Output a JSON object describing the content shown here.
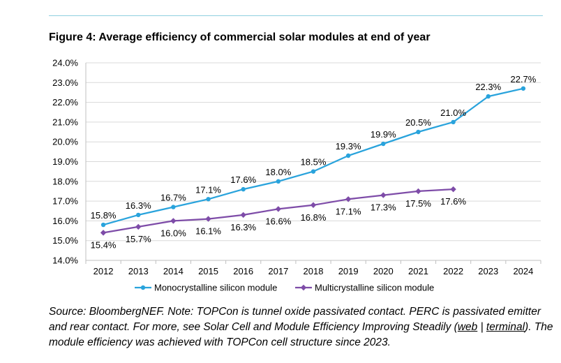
{
  "figure": {
    "title": "Figure 4:  Average efficiency of commercial solar modules at end of year"
  },
  "chart_data": {
    "type": "line",
    "title": "Average efficiency of commercial solar modules at end of year",
    "xlabel": "",
    "ylabel": "",
    "categories": [
      "2012",
      "2013",
      "2014",
      "2015",
      "2016",
      "2017",
      "2018",
      "2019",
      "2020",
      "2021",
      "2022",
      "2023",
      "2024"
    ],
    "ylim": [
      14.0,
      24.0
    ],
    "ytick_step": 1.0,
    "yticks": [
      "14.0%",
      "15.0%",
      "16.0%",
      "17.0%",
      "18.0%",
      "19.0%",
      "20.0%",
      "21.0%",
      "22.0%",
      "23.0%",
      "24.0%"
    ],
    "grid": true,
    "legend_position": "bottom",
    "series": [
      {
        "name": "Monocrystalline silicon module",
        "color": "#29a3dc",
        "marker": "circle",
        "label_position": "above",
        "values": [
          15.8,
          16.3,
          16.7,
          17.1,
          17.6,
          18.0,
          18.5,
          19.3,
          19.9,
          20.5,
          21.0,
          22.3,
          22.7
        ],
        "labels": [
          "15.8%",
          "16.3%",
          "16.7%",
          "17.1%",
          "17.6%",
          "18.0%",
          "18.5%",
          "19.3%",
          "19.9%",
          "20.5%",
          "21.0%",
          "22.3%",
          "22.7%"
        ]
      },
      {
        "name": "Multicrystalline silicon module",
        "color": "#7e4ca8",
        "marker": "diamond",
        "label_position": "below",
        "values": [
          15.4,
          15.7,
          16.0,
          16.1,
          16.3,
          16.6,
          16.8,
          17.1,
          17.3,
          17.5,
          17.6,
          null,
          null
        ],
        "labels": [
          "15.4%",
          "15.7%",
          "16.0%",
          "16.1%",
          "16.3%",
          "16.6%",
          "16.8%",
          "17.1%",
          "17.3%",
          "17.5%",
          "17.6%",
          null,
          null
        ]
      }
    ]
  },
  "source": {
    "part1": "Source: BloombergNEF. Note: TOPCon is tunnel oxide passivated contact. PERC is passivated emitter and rear contact. For more, see  Solar Cell and Module Efficiency Improving Steadily (",
    "link_web": "web",
    "separator": " | ",
    "link_terminal": "terminal",
    "part2": ").  The module efficiency was achieved with TOPCon cell structure since 2023."
  }
}
